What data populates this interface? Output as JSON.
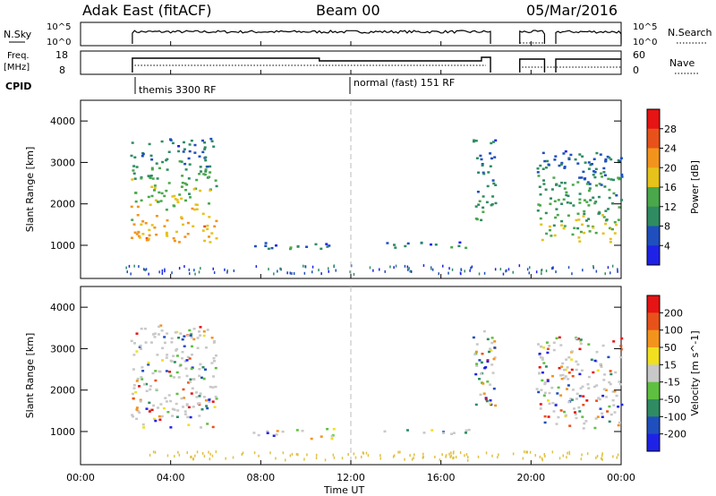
{
  "header": {
    "title": "Adak East (fitACF)",
    "beam": "Beam 00",
    "date": "05/Mar/2016"
  },
  "strips": {
    "nsky": {
      "label": "N.Sky",
      "ticks": [
        "10^5",
        "10^0"
      ],
      "right_label": "N.Search",
      "right_ticks": [
        "10^5",
        "10^0"
      ]
    },
    "freq": {
      "label_line1": "Freq.",
      "label_line2": "[MHz]",
      "ticks": [
        "18",
        "8"
      ],
      "right_label": "Nave",
      "right_ticks": [
        "60",
        "0"
      ]
    },
    "cpid": {
      "label": "CPID",
      "programs": [
        "themis 3300 RF",
        "normal (fast) 151 RF"
      ]
    }
  },
  "chart_data": [
    {
      "type": "heatmap",
      "name": "power",
      "ylabel": "Slant Range [km]",
      "yticks": [
        "4000",
        "3000",
        "2000",
        "1000"
      ],
      "ylim": [
        200,
        4500
      ],
      "xlim": [
        0,
        24
      ],
      "colorbar": {
        "label": "Power [dB]",
        "ticks": [
          "28",
          "24",
          "20",
          "16",
          "12",
          "8",
          "4"
        ],
        "colors": [
          "#1e22e6",
          "#1f4fbe",
          "#2f8c62",
          "#4aa84a",
          "#e6c21a",
          "#f2941c",
          "#e8521a",
          "#e61414"
        ]
      },
      "regions": [
        {
          "t0": 2.2,
          "t1": 6.0,
          "r0": 1100,
          "r1": 3600,
          "level": 0.6
        },
        {
          "t0": 7.6,
          "t1": 9.8,
          "r0": 920,
          "r1": 1100,
          "level": 0.15
        },
        {
          "t0": 9.8,
          "t1": 11.2,
          "r0": 850,
          "r1": 1100,
          "level": 0.1
        },
        {
          "t0": 13.0,
          "t1": 17.2,
          "r0": 950,
          "r1": 1100,
          "level": 0.15
        },
        {
          "t0": 17.4,
          "t1": 18.4,
          "r0": 1600,
          "r1": 3600,
          "level": 0.3
        },
        {
          "t0": 20.2,
          "t1": 24.0,
          "r0": 1100,
          "r1": 3300,
          "level": 0.4
        }
      ]
    },
    {
      "type": "heatmap",
      "name": "velocity",
      "ylabel": "Slant Range [km]",
      "yticks": [
        "4000",
        "3000",
        "2000",
        "1000"
      ],
      "ylim": [
        200,
        4500
      ],
      "xlim": [
        0,
        24
      ],
      "colorbar": {
        "label": "Velocity [m s^-1]",
        "ticks": [
          "200",
          "100",
          "50",
          "15",
          "-15",
          "-50",
          "-100",
          "-200"
        ],
        "colors": [
          "#1e22e6",
          "#1f4fbe",
          "#2f8c62",
          "#5ec040",
          "#c8c8c8",
          "#f0e020",
          "#f2941c",
          "#e8521a",
          "#e61414"
        ]
      },
      "regions": [
        {
          "t0": 2.2,
          "t1": 6.0,
          "r0": 1100,
          "r1": 3600,
          "level": 0.5
        },
        {
          "t0": 7.6,
          "t1": 9.8,
          "r0": 920,
          "r1": 1100,
          "level": 0.4
        },
        {
          "t0": 9.8,
          "t1": 11.2,
          "r0": 850,
          "r1": 1100,
          "level": 0.35
        },
        {
          "t0": 13.0,
          "t1": 17.2,
          "r0": 950,
          "r1": 1100,
          "level": 0.6
        },
        {
          "t0": 17.4,
          "t1": 18.4,
          "r0": 1600,
          "r1": 3600,
          "level": 0.3
        },
        {
          "t0": 20.2,
          "t1": 24.0,
          "r0": 1100,
          "r1": 3300,
          "level": 0.5
        }
      ]
    }
  ],
  "xaxis": {
    "label": "Time UT",
    "ticks": [
      "00:00",
      "04:00",
      "08:00",
      "12:00",
      "16:00",
      "20:00",
      "00:00"
    ]
  }
}
